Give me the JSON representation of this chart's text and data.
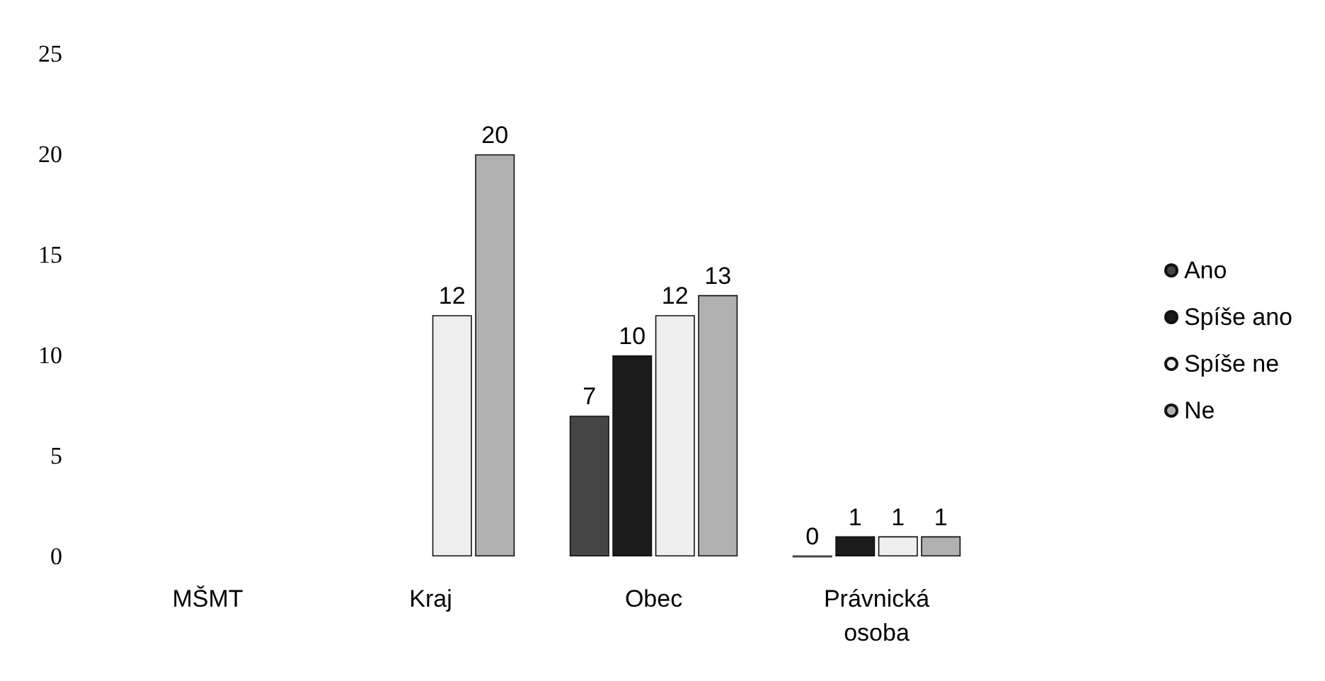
{
  "chart_data": {
    "type": "bar",
    "categories": [
      "MŠMT",
      "Kraj",
      "Obec",
      "Právnická\nosoba"
    ],
    "series": [
      {
        "name": "Ano",
        "color": "#454545",
        "values": [
          null,
          null,
          7,
          0
        ]
      },
      {
        "name": "Spíše ano",
        "color": "#1c1c1c",
        "values": [
          null,
          null,
          10,
          1
        ]
      },
      {
        "name": "Spíše ne",
        "color": "#eeeeee",
        "values": [
          null,
          12,
          12,
          1
        ]
      },
      {
        "name": "Ne",
        "color": "#b0b0b0",
        "values": [
          null,
          20,
          13,
          1
        ]
      }
    ],
    "ylim": [
      0,
      25
    ],
    "yticks": [
      0,
      5,
      10,
      15,
      20,
      25
    ],
    "grid": false,
    "legend": "right",
    "data_labels": true
  }
}
